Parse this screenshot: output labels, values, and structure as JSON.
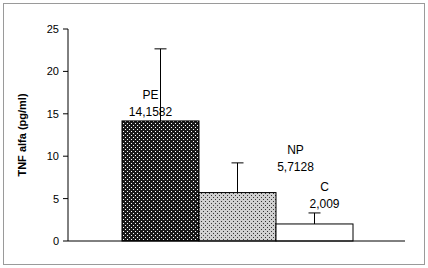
{
  "chart_data": {
    "type": "bar",
    "y_label": "TNF alfa (pg/ml)",
    "categories": [
      "PE",
      "NP",
      "C"
    ],
    "values": [
      14.1582,
      5.7128,
      2.009
    ],
    "value_labels": [
      "14,1582",
      "5,7128",
      "2,009"
    ],
    "errors": [
      8.5,
      3.5,
      1.3
    ],
    "colors": [
      "#1a1a1a",
      "#d0d0d0",
      "#ffffff"
    ],
    "ylim": [
      0,
      25
    ],
    "yticks": [
      0,
      5,
      10,
      15,
      20,
      25
    ],
    "data_labels": true,
    "tick_labels": "y"
  }
}
